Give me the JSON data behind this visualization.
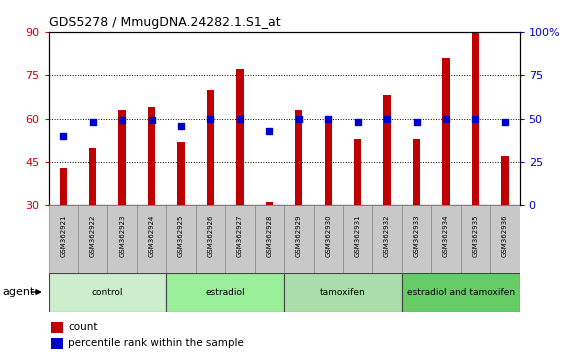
{
  "title": "GDS5278 / MmugDNA.24282.1.S1_at",
  "samples": [
    "GSM362921",
    "GSM362922",
    "GSM362923",
    "GSM362924",
    "GSM362925",
    "GSM362926",
    "GSM362927",
    "GSM362928",
    "GSM362929",
    "GSM362930",
    "GSM362931",
    "GSM362932",
    "GSM362933",
    "GSM362934",
    "GSM362935",
    "GSM362936"
  ],
  "count_values": [
    43,
    50,
    63,
    64,
    52,
    70,
    77,
    31,
    63,
    60,
    53,
    68,
    53,
    81,
    90,
    47
  ],
  "percentile_values": [
    40,
    48,
    49,
    49,
    46,
    50,
    50,
    43,
    50,
    50,
    48,
    50,
    48,
    50,
    50,
    48
  ],
  "bar_color": "#C00000",
  "dot_color": "#0000CC",
  "ylim_left": [
    30,
    90
  ],
  "ylim_right": [
    0,
    100
  ],
  "yticks_left": [
    30,
    45,
    60,
    75,
    90
  ],
  "yticks_right": [
    0,
    25,
    50,
    75,
    100
  ],
  "groups": [
    {
      "label": "control",
      "start": 0,
      "end": 3
    },
    {
      "label": "estradiol",
      "start": 4,
      "end": 7
    },
    {
      "label": "tamoxifen",
      "start": 8,
      "end": 11
    },
    {
      "label": "estradiol and tamoxifen",
      "start": 12,
      "end": 15
    }
  ],
  "group_colors": [
    "#CCEECC",
    "#99EE99",
    "#AADDAA",
    "#66CC66"
  ],
  "agent_label": "agent",
  "legend_count_label": "count",
  "legend_pct_label": "percentile rank within the sample",
  "background_color": "#FFFFFF",
  "plot_bg_color": "#FFFFFF",
  "tick_color_left": "#CC0000",
  "tick_color_right": "#0000CC",
  "grid_color": "#000000",
  "bar_width": 0.25,
  "dot_size": 18,
  "label_bg_color": "#C8C8C8",
  "label_border_color": "#888888"
}
